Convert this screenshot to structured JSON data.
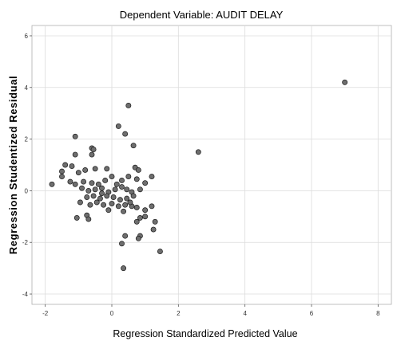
{
  "chart_data": {
    "type": "scatter",
    "title": "Dependent Variable: AUDIT DELAY",
    "xlabel": "Regression Standardized Predicted Value",
    "ylabel": "Regression Studentized Residual",
    "xlim": [
      -2.4,
      8.4
    ],
    "ylim": [
      -4.4,
      6.4
    ],
    "xticks": [
      -2,
      0,
      2,
      4,
      6,
      8
    ],
    "yticks": [
      -4,
      -2,
      0,
      2,
      4,
      6
    ],
    "grid": true,
    "point_color": "#6e6e6e",
    "points": [
      [
        7.0,
        4.2
      ],
      [
        2.6,
        1.5
      ],
      [
        0.5,
        3.3
      ],
      [
        0.2,
        2.5
      ],
      [
        0.4,
        2.2
      ],
      [
        0.65,
        1.75
      ],
      [
        -1.1,
        2.1
      ],
      [
        -0.6,
        1.65
      ],
      [
        -0.55,
        1.6
      ],
      [
        -0.6,
        1.4
      ],
      [
        -1.1,
        1.4
      ],
      [
        -1.4,
        1.0
      ],
      [
        -1.2,
        0.95
      ],
      [
        -1.5,
        0.75
      ],
      [
        -1.5,
        0.55
      ],
      [
        -1.25,
        0.35
      ],
      [
        -1.0,
        0.7
      ],
      [
        -0.8,
        0.8
      ],
      [
        -0.5,
        0.85
      ],
      [
        -0.15,
        0.85
      ],
      [
        0.7,
        0.9
      ],
      [
        0.8,
        0.8
      ],
      [
        -1.8,
        0.25
      ],
      [
        -1.1,
        0.25
      ],
      [
        -0.85,
        0.35
      ],
      [
        -0.6,
        0.3
      ],
      [
        -0.4,
        0.25
      ],
      [
        -0.2,
        0.4
      ],
      [
        0.0,
        0.55
      ],
      [
        0.15,
        0.25
      ],
      [
        0.3,
        0.4
      ],
      [
        0.5,
        0.55
      ],
      [
        0.75,
        0.45
      ],
      [
        1.2,
        0.55
      ],
      [
        1.0,
        0.3
      ],
      [
        -0.9,
        0.1
      ],
      [
        -0.7,
        0.0
      ],
      [
        -0.5,
        0.05
      ],
      [
        -0.3,
        0.1
      ],
      [
        -0.1,
        -0.05
      ],
      [
        0.1,
        0.05
      ],
      [
        0.3,
        0.15
      ],
      [
        0.45,
        0.05
      ],
      [
        0.6,
        -0.05
      ],
      [
        0.85,
        0.05
      ],
      [
        -0.75,
        -0.25
      ],
      [
        -0.55,
        -0.2
      ],
      [
        -0.35,
        -0.3
      ],
      [
        -0.15,
        -0.2
      ],
      [
        0.05,
        -0.25
      ],
      [
        0.25,
        -0.35
      ],
      [
        0.45,
        -0.3
      ],
      [
        0.65,
        -0.2
      ],
      [
        -0.95,
        -0.45
      ],
      [
        -0.65,
        -0.55
      ],
      [
        -0.45,
        -0.45
      ],
      [
        -0.25,
        -0.55
      ],
      [
        0.0,
        -0.5
      ],
      [
        0.2,
        -0.6
      ],
      [
        0.4,
        -0.55
      ],
      [
        0.6,
        -0.6
      ],
      [
        0.75,
        -0.65
      ],
      [
        1.2,
        -0.6
      ],
      [
        -0.1,
        -0.75
      ],
      [
        0.35,
        -0.8
      ],
      [
        1.0,
        -0.75
      ],
      [
        -1.05,
        -1.05
      ],
      [
        -0.75,
        -0.95
      ],
      [
        -0.7,
        -1.1
      ],
      [
        0.85,
        -1.05
      ],
      [
        1.0,
        -1.0
      ],
      [
        0.75,
        -1.2
      ],
      [
        1.3,
        -1.2
      ],
      [
        1.25,
        -1.5
      ],
      [
        0.4,
        -1.75
      ],
      [
        0.85,
        -1.75
      ],
      [
        0.8,
        -1.85
      ],
      [
        0.3,
        -2.05
      ],
      [
        1.45,
        -2.35
      ],
      [
        0.35,
        -3.0
      ],
      [
        -0.3,
        -0.1
      ],
      [
        0.55,
        -0.45
      ]
    ]
  }
}
